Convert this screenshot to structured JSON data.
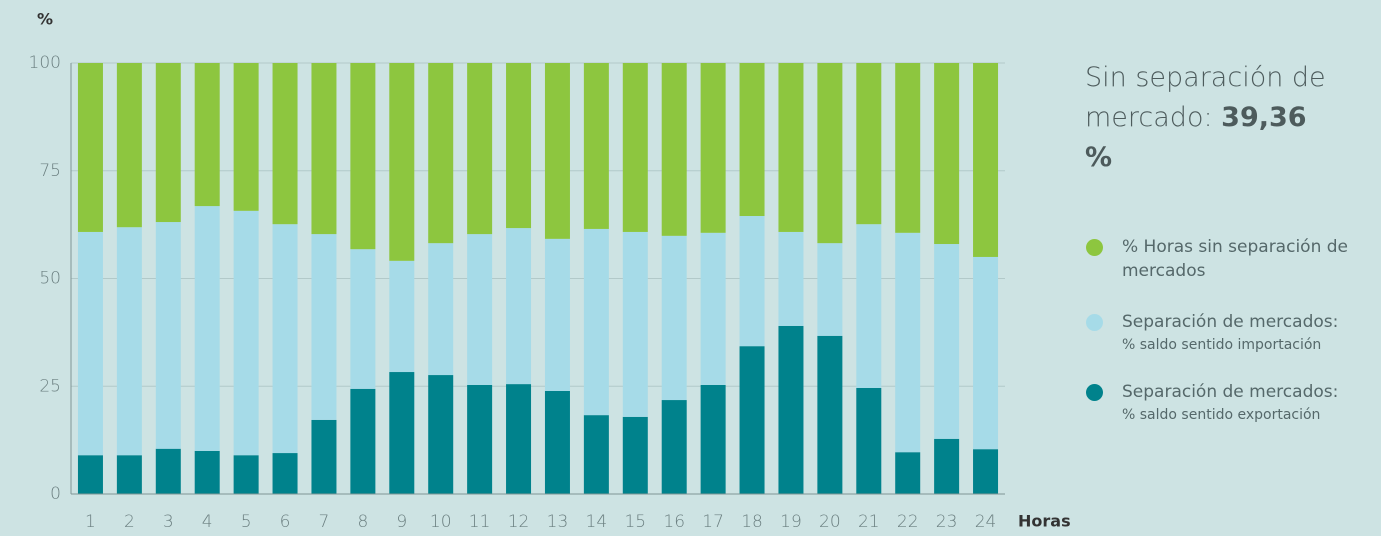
{
  "chart_data": {
    "type": "stacked_bar",
    "y_label": "%",
    "x_label": "Horas",
    "annotation": {
      "text": "Sin separación de mercado:",
      "value": "39,36 %"
    },
    "categories": [
      "1",
      "2",
      "3",
      "4",
      "5",
      "6",
      "7",
      "8",
      "9",
      "10",
      "11",
      "12",
      "13",
      "14",
      "15",
      "16",
      "17",
      "18",
      "19",
      "20",
      "21",
      "22",
      "23",
      "24"
    ],
    "series": [
      {
        "name": "% Horas sin separación de mercados",
        "color": "#8dc63f",
        "values": [
          39.2,
          38.1,
          36.9,
          33.2,
          34.3,
          37.4,
          39.7,
          43.2,
          45.9,
          41.8,
          39.7,
          38.3,
          40.8,
          38.5,
          39.2,
          40.1,
          39.4,
          35.5,
          39.2,
          41.8,
          37.4,
          39.4,
          42,
          45
        ]
      },
      {
        "name": "Separación de mercados:",
        "legend_detail": "% saldo sentido importación",
        "color": "#a6dbe8",
        "values": [
          51.8,
          52.9,
          52.6,
          56.8,
          56.7,
          53.1,
          43.1,
          32.4,
          25.8,
          30.6,
          35,
          36.2,
          35.3,
          43.2,
          42.9,
          38.1,
          35.3,
          30.2,
          21.8,
          21.5,
          38,
          50.9,
          45.2,
          44.6
        ]
      },
      {
        "name": "Separación de mercados:",
        "legend_detail": "% saldo sentido exportación",
        "color": "#00828c",
        "values": [
          9,
          9,
          10.5,
          10,
          9,
          9.5,
          17.2,
          24.4,
          28.3,
          27.6,
          25.3,
          25.5,
          23.9,
          18.3,
          17.9,
          21.8,
          25.3,
          34.3,
          39,
          36.7,
          24.6,
          9.7,
          12.8,
          10.4
        ]
      }
    ],
    "ylim": [
      0,
      100
    ],
    "yticks": [
      0,
      25,
      50,
      75,
      100
    ],
    "grid": true
  }
}
